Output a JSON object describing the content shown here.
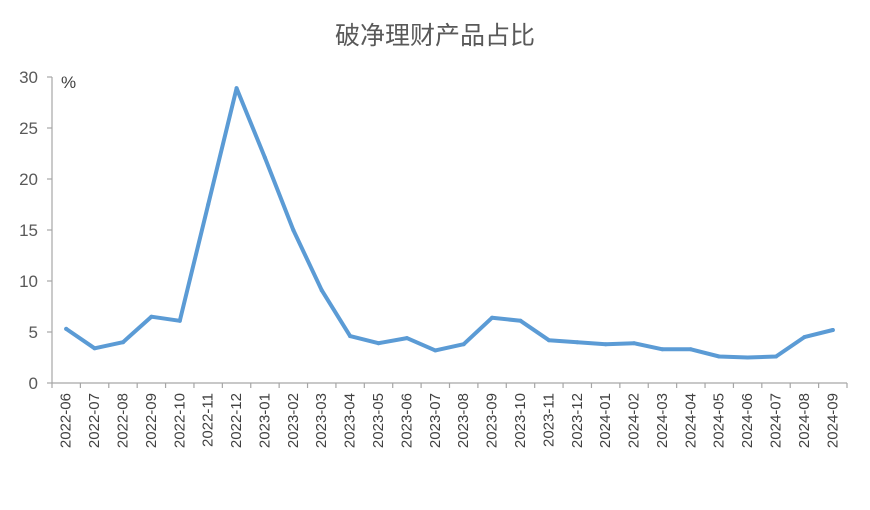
{
  "chart_data": {
    "type": "line",
    "title": "破净理财产品占比",
    "xlabel": "",
    "ylabel": "%",
    "ylim": [
      0,
      30
    ],
    "yticks": [
      0,
      5,
      10,
      15,
      20,
      25,
      30
    ],
    "grid": false,
    "legend": "none",
    "categories": [
      "2022-06",
      "2022-07",
      "2022-08",
      "2022-09",
      "2022-10",
      "2022-11",
      "2022-12",
      "2023-01",
      "2023-02",
      "2023-03",
      "2023-04",
      "2023-05",
      "2023-06",
      "2023-07",
      "2023-08",
      "2023-09",
      "2023-10",
      "2023-11",
      "2023-12",
      "2024-01",
      "2024-02",
      "2024-03",
      "2024-04",
      "2024-05",
      "2024-06",
      "2024-07",
      "2024-08",
      "2024-09"
    ],
    "series": [
      {
        "color": "#5B9BD5",
        "values": [
          5.3,
          3.4,
          4.0,
          6.5,
          6.1,
          17.5,
          28.9,
          22.1,
          15.0,
          9.1,
          4.6,
          3.9,
          4.4,
          3.2,
          3.8,
          6.4,
          6.1,
          4.2,
          4.0,
          3.8,
          3.9,
          3.3,
          3.3,
          2.6,
          2.5,
          2.6,
          4.5,
          5.2
        ]
      }
    ]
  },
  "colors": {
    "axis": "#A6A6A6",
    "text": "#595959"
  }
}
